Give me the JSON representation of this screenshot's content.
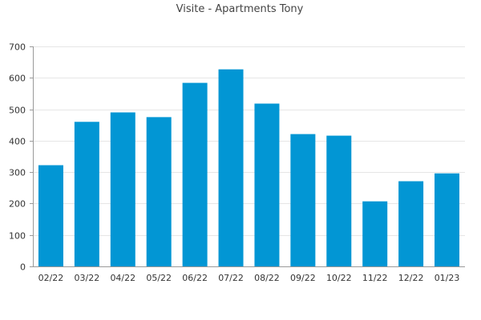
{
  "chart_data": {
    "type": "bar",
    "title": "Visite - Apartments Tony",
    "xlabel": "",
    "ylabel": "",
    "categories": [
      "02/22",
      "03/22",
      "04/22",
      "05/22",
      "06/22",
      "07/22",
      "08/22",
      "09/22",
      "10/22",
      "11/22",
      "12/22",
      "01/23"
    ],
    "values": [
      322,
      460,
      490,
      475,
      584,
      627,
      518,
      421,
      416,
      207,
      271,
      296
    ],
    "ylim": [
      0,
      700
    ],
    "yticks": [
      0,
      100,
      200,
      300,
      400,
      500,
      600,
      700
    ],
    "grid": true,
    "legend": "none",
    "bar_color": "#0296d4"
  }
}
